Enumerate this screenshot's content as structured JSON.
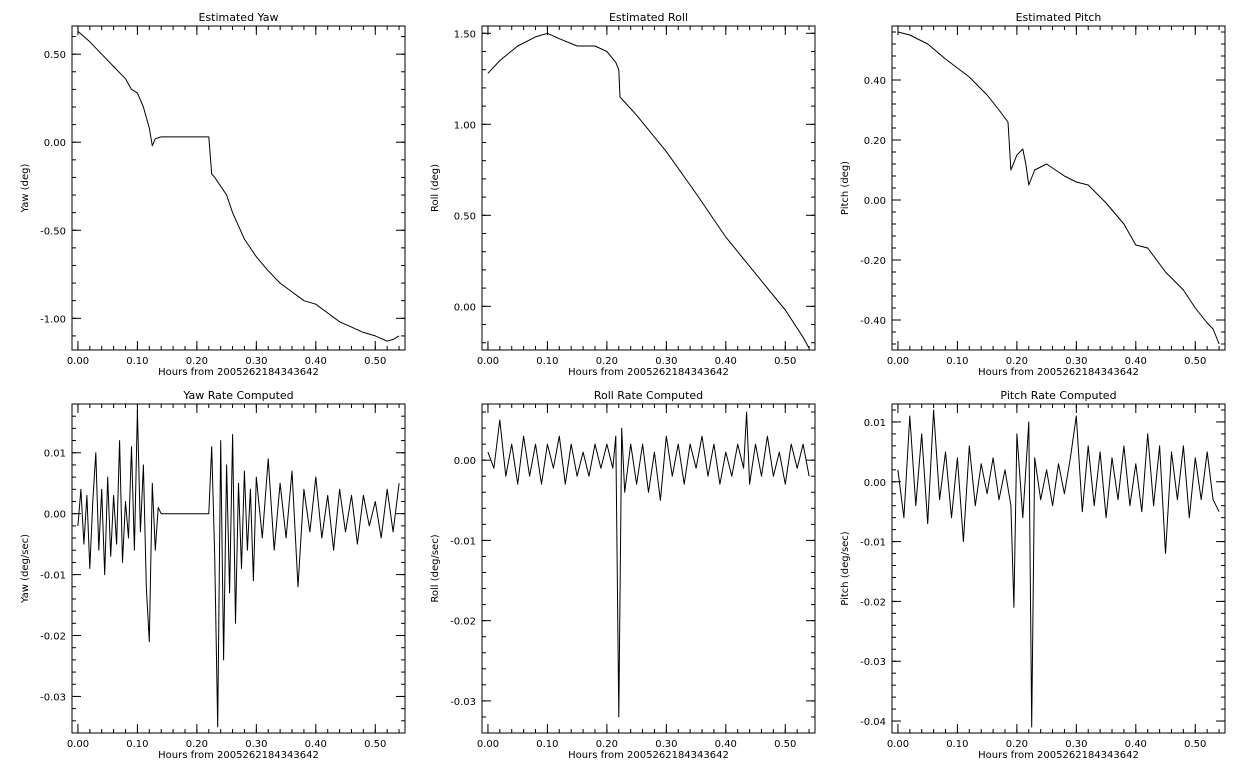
{
  "chart_data": [
    {
      "type": "line",
      "title": "Estimated Yaw",
      "xlabel": "Hours from 2005262184343642",
      "ylabel": "Yaw (deg)",
      "xlim": [
        -0.01,
        0.55
      ],
      "ylim": [
        -1.18,
        0.66
      ],
      "xticks": [
        0.0,
        0.1,
        0.2,
        0.3,
        0.4,
        0.5
      ],
      "xtick_labels": [
        "0.00",
        "0.10",
        "0.20",
        "0.30",
        "0.40",
        "0.50"
      ],
      "yticks": [
        -1.0,
        -0.5,
        0.0,
        0.5
      ],
      "ytick_labels": [
        "-1.00",
        "-0.50",
        "0.00",
        "0.50"
      ],
      "series": [
        {
          "x": [
            0.0,
            0.02,
            0.04,
            0.06,
            0.08,
            0.09,
            0.1,
            0.11,
            0.12,
            0.125,
            0.13,
            0.14,
            0.18,
            0.22,
            0.225,
            0.23,
            0.24,
            0.25,
            0.26,
            0.28,
            0.3,
            0.32,
            0.34,
            0.36,
            0.38,
            0.4,
            0.42,
            0.44,
            0.46,
            0.48,
            0.5,
            0.52,
            0.53,
            0.54
          ],
          "y": [
            0.63,
            0.57,
            0.5,
            0.43,
            0.36,
            0.3,
            0.28,
            0.2,
            0.08,
            -0.02,
            0.02,
            0.03,
            0.03,
            0.03,
            -0.18,
            -0.2,
            -0.25,
            -0.3,
            -0.4,
            -0.55,
            -0.65,
            -0.73,
            -0.8,
            -0.85,
            -0.9,
            -0.92,
            -0.97,
            -1.02,
            -1.05,
            -1.08,
            -1.1,
            -1.13,
            -1.12,
            -1.1
          ]
        }
      ]
    },
    {
      "type": "line",
      "title": "Estimated Roll",
      "xlabel": "Hours from 2005262184343642",
      "ylabel": "Roll (deg)",
      "xlim": [
        -0.01,
        0.55
      ],
      "ylim": [
        -0.24,
        1.54
      ],
      "xticks": [
        0.0,
        0.1,
        0.2,
        0.3,
        0.4,
        0.5
      ],
      "xtick_labels": [
        "0.00",
        "0.10",
        "0.20",
        "0.30",
        "0.40",
        "0.50"
      ],
      "yticks": [
        0.0,
        0.5,
        1.0,
        1.5
      ],
      "ytick_labels": [
        "0.00",
        "0.50",
        "1.00",
        "1.50"
      ],
      "series": [
        {
          "x": [
            0.0,
            0.02,
            0.05,
            0.08,
            0.1,
            0.12,
            0.15,
            0.18,
            0.2,
            0.215,
            0.22,
            0.222,
            0.25,
            0.3,
            0.35,
            0.4,
            0.45,
            0.5,
            0.53,
            0.54
          ],
          "y": [
            1.28,
            1.35,
            1.43,
            1.48,
            1.5,
            1.47,
            1.43,
            1.43,
            1.4,
            1.34,
            1.3,
            1.15,
            1.05,
            0.85,
            0.62,
            0.38,
            0.18,
            -0.02,
            -0.17,
            -0.23
          ]
        }
      ]
    },
    {
      "type": "line",
      "title": "Estimated Pitch",
      "xlabel": "Hours from 2005262184343642",
      "ylabel": "Pitch (deg)",
      "xlim": [
        -0.01,
        0.55
      ],
      "ylim": [
        -0.5,
        0.58
      ],
      "xticks": [
        0.0,
        0.1,
        0.2,
        0.3,
        0.4,
        0.5
      ],
      "xtick_labels": [
        "0.00",
        "0.10",
        "0.20",
        "0.30",
        "0.40",
        "0.50"
      ],
      "yticks": [
        -0.4,
        -0.2,
        0.0,
        0.2,
        0.4
      ],
      "ytick_labels": [
        "-0.40",
        "-0.20",
        "0.00",
        "0.20",
        "0.40"
      ],
      "series": [
        {
          "x": [
            0.0,
            0.02,
            0.05,
            0.08,
            0.1,
            0.12,
            0.15,
            0.17,
            0.185,
            0.19,
            0.2,
            0.21,
            0.215,
            0.22,
            0.23,
            0.25,
            0.28,
            0.3,
            0.32,
            0.35,
            0.38,
            0.4,
            0.42,
            0.45,
            0.48,
            0.5,
            0.52,
            0.53,
            0.54
          ],
          "y": [
            0.56,
            0.55,
            0.52,
            0.47,
            0.44,
            0.41,
            0.35,
            0.3,
            0.26,
            0.1,
            0.15,
            0.17,
            0.12,
            0.05,
            0.1,
            0.12,
            0.08,
            0.06,
            0.05,
            -0.01,
            -0.08,
            -0.15,
            -0.16,
            -0.24,
            -0.3,
            -0.36,
            -0.41,
            -0.43,
            -0.48
          ]
        }
      ]
    },
    {
      "type": "line",
      "title": "Yaw Rate Computed",
      "xlabel": "Hours from 2005262184343642",
      "ylabel": "Yaw (deg/sec)",
      "xlim": [
        -0.01,
        0.55
      ],
      "ylim": [
        -0.036,
        0.018
      ],
      "xticks": [
        0.0,
        0.1,
        0.2,
        0.3,
        0.4,
        0.5
      ],
      "xtick_labels": [
        "0.00",
        "0.10",
        "0.20",
        "0.30",
        "0.40",
        "0.50"
      ],
      "yticks": [
        -0.03,
        -0.02,
        -0.01,
        0.0,
        0.01
      ],
      "ytick_labels": [
        "-0.03",
        "-0.02",
        "-0.01",
        "0.00",
        "0.01"
      ],
      "series": [
        {
          "x": [
            0.0,
            0.005,
            0.01,
            0.015,
            0.02,
            0.025,
            0.03,
            0.035,
            0.04,
            0.045,
            0.05,
            0.055,
            0.06,
            0.065,
            0.07,
            0.075,
            0.08,
            0.085,
            0.09,
            0.095,
            0.1,
            0.105,
            0.11,
            0.115,
            0.12,
            0.125,
            0.13,
            0.135,
            0.14,
            0.22,
            0.225,
            0.23,
            0.235,
            0.24,
            0.245,
            0.25,
            0.255,
            0.26,
            0.265,
            0.27,
            0.275,
            0.28,
            0.285,
            0.29,
            0.295,
            0.3,
            0.31,
            0.32,
            0.33,
            0.34,
            0.35,
            0.36,
            0.37,
            0.38,
            0.39,
            0.4,
            0.41,
            0.42,
            0.43,
            0.44,
            0.45,
            0.46,
            0.47,
            0.48,
            0.49,
            0.5,
            0.51,
            0.52,
            0.53,
            0.54
          ],
          "y": [
            -0.002,
            0.004,
            -0.005,
            0.003,
            -0.009,
            0.002,
            0.01,
            -0.006,
            0.004,
            -0.01,
            0.006,
            -0.007,
            0.003,
            -0.005,
            0.012,
            -0.008,
            0.002,
            -0.004,
            0.011,
            -0.006,
            0.017,
            -0.003,
            0.008,
            -0.012,
            -0.021,
            0.005,
            -0.006,
            0.001,
            0.0,
            0.0,
            0.011,
            -0.007,
            -0.035,
            0.012,
            -0.024,
            0.008,
            -0.013,
            0.013,
            -0.018,
            0.005,
            -0.009,
            0.007,
            -0.006,
            0.004,
            -0.011,
            0.006,
            -0.004,
            0.009,
            -0.006,
            0.005,
            -0.004,
            0.007,
            -0.012,
            0.004,
            -0.003,
            0.006,
            -0.004,
            0.003,
            -0.006,
            0.004,
            -0.003,
            0.003,
            -0.005,
            0.003,
            -0.002,
            0.002,
            -0.004,
            0.004,
            -0.003,
            0.005
          ]
        }
      ]
    },
    {
      "type": "line",
      "title": "Roll Rate Computed",
      "xlabel": "Hours from 2005262184343642",
      "ylabel": "Roll (deg/sec)",
      "xlim": [
        -0.01,
        0.55
      ],
      "ylim": [
        -0.034,
        0.007
      ],
      "xticks": [
        0.0,
        0.1,
        0.2,
        0.3,
        0.4,
        0.5
      ],
      "xtick_labels": [
        "0.00",
        "0.10",
        "0.20",
        "0.30",
        "0.40",
        "0.50"
      ],
      "yticks": [
        -0.03,
        -0.02,
        -0.01,
        0.0
      ],
      "ytick_labels": [
        "-0.03",
        "-0.02",
        "-0.01",
        "0.00"
      ],
      "series": [
        {
          "x": [
            0.0,
            0.01,
            0.02,
            0.03,
            0.04,
            0.05,
            0.06,
            0.07,
            0.08,
            0.09,
            0.1,
            0.11,
            0.12,
            0.13,
            0.14,
            0.15,
            0.16,
            0.17,
            0.18,
            0.19,
            0.2,
            0.21,
            0.215,
            0.22,
            0.225,
            0.23,
            0.24,
            0.25,
            0.26,
            0.27,
            0.28,
            0.29,
            0.3,
            0.31,
            0.32,
            0.33,
            0.34,
            0.35,
            0.36,
            0.37,
            0.38,
            0.39,
            0.4,
            0.41,
            0.42,
            0.43,
            0.435,
            0.44,
            0.45,
            0.46,
            0.47,
            0.48,
            0.49,
            0.5,
            0.51,
            0.52,
            0.53,
            0.54
          ],
          "y": [
            0.001,
            -0.001,
            0.005,
            -0.002,
            0.002,
            -0.003,
            0.003,
            -0.002,
            0.002,
            -0.003,
            0.002,
            -0.001,
            0.003,
            -0.003,
            0.002,
            -0.002,
            0.001,
            -0.002,
            0.002,
            -0.001,
            0.002,
            -0.001,
            0.003,
            -0.032,
            0.004,
            -0.004,
            0.002,
            -0.003,
            0.002,
            -0.004,
            0.001,
            -0.005,
            0.003,
            -0.002,
            0.002,
            -0.003,
            0.002,
            -0.001,
            0.003,
            -0.002,
            0.002,
            -0.003,
            0.001,
            -0.002,
            0.002,
            -0.001,
            0.006,
            -0.003,
            0.002,
            -0.002,
            0.003,
            -0.002,
            0.001,
            -0.003,
            0.002,
            -0.001,
            0.002,
            -0.002
          ]
        }
      ]
    },
    {
      "type": "line",
      "title": "Pitch Rate Computed",
      "xlabel": "Hours from 2005262184343642",
      "ylabel": "Pitch (deg/sec)",
      "xlim": [
        -0.01,
        0.55
      ],
      "ylim": [
        -0.042,
        0.013
      ],
      "xticks": [
        0.0,
        0.1,
        0.2,
        0.3,
        0.4,
        0.5
      ],
      "xtick_labels": [
        "0.00",
        "0.10",
        "0.20",
        "0.30",
        "0.40",
        "0.50"
      ],
      "yticks": [
        -0.04,
        -0.03,
        -0.02,
        -0.01,
        0.0,
        0.01
      ],
      "ytick_labels": [
        "-0.04",
        "-0.03",
        "-0.02",
        "-0.01",
        "0.00",
        "0.01"
      ],
      "series": [
        {
          "x": [
            0.0,
            0.01,
            0.02,
            0.03,
            0.04,
            0.05,
            0.06,
            0.07,
            0.08,
            0.09,
            0.1,
            0.11,
            0.12,
            0.13,
            0.14,
            0.15,
            0.16,
            0.17,
            0.18,
            0.19,
            0.195,
            0.2,
            0.21,
            0.22,
            0.225,
            0.23,
            0.24,
            0.25,
            0.26,
            0.27,
            0.28,
            0.29,
            0.3,
            0.31,
            0.32,
            0.33,
            0.34,
            0.35,
            0.36,
            0.37,
            0.38,
            0.39,
            0.4,
            0.41,
            0.42,
            0.43,
            0.44,
            0.45,
            0.46,
            0.47,
            0.48,
            0.49,
            0.5,
            0.51,
            0.52,
            0.53,
            0.54
          ],
          "y": [
            0.002,
            -0.006,
            0.011,
            -0.004,
            0.008,
            -0.007,
            0.012,
            -0.003,
            0.005,
            -0.006,
            0.004,
            -0.01,
            0.006,
            -0.004,
            0.003,
            -0.002,
            0.004,
            -0.003,
            0.002,
            -0.004,
            -0.021,
            0.008,
            -0.006,
            0.01,
            -0.041,
            0.004,
            -0.003,
            0.002,
            -0.004,
            0.003,
            -0.002,
            0.004,
            0.011,
            -0.005,
            0.006,
            -0.004,
            0.005,
            -0.006,
            0.004,
            -0.003,
            0.006,
            -0.004,
            0.003,
            -0.005,
            0.008,
            -0.004,
            0.006,
            -0.012,
            0.005,
            -0.003,
            0.006,
            -0.006,
            0.004,
            -0.003,
            0.005,
            -0.003,
            -0.005
          ]
        }
      ]
    }
  ]
}
